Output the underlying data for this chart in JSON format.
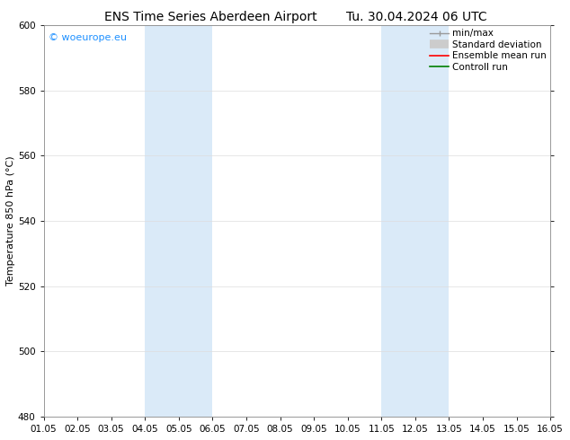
{
  "title": "ENS Time Series Aberdeen Airport",
  "title2": "Tu. 30.04.2024 06 UTC",
  "ylabel": "Temperature 850 hPa (°C)",
  "watermark": "© woeurope.eu",
  "watermark_color": "#1e90ff",
  "ylim": [
    480,
    600
  ],
  "yticks": [
    480,
    500,
    520,
    540,
    560,
    580,
    600
  ],
  "xlim": [
    0,
    15
  ],
  "xtick_labels": [
    "01.05",
    "02.05",
    "03.05",
    "04.05",
    "05.05",
    "06.05",
    "07.05",
    "08.05",
    "09.05",
    "10.05",
    "11.05",
    "12.05",
    "13.05",
    "14.05",
    "15.05",
    "16.05"
  ],
  "shaded_regions": [
    {
      "xmin": 3,
      "xmax": 5,
      "color": "#daeaf8"
    },
    {
      "xmin": 10,
      "xmax": 12,
      "color": "#daeaf8"
    }
  ],
  "bg_color": "#ffffff",
  "grid_color": "#dddddd",
  "title_fontsize": 10,
  "label_fontsize": 8,
  "tick_fontsize": 7.5,
  "legend_fontsize": 7.5
}
